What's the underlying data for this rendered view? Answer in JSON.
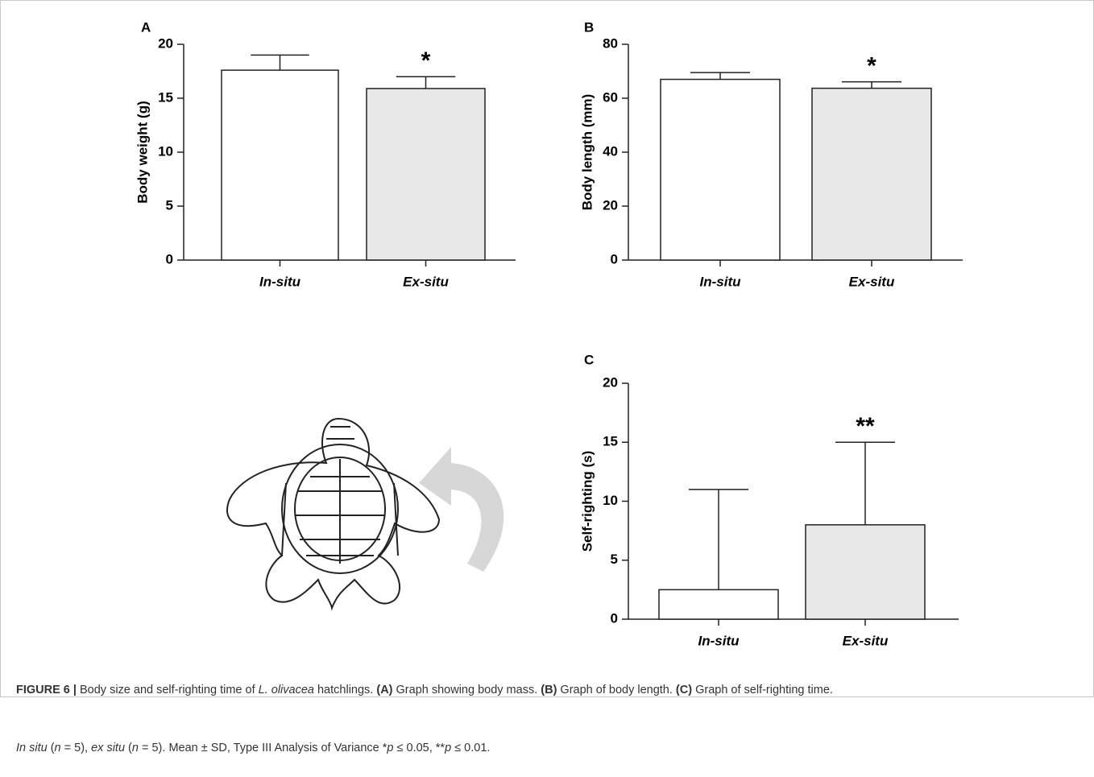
{
  "chart_data": [
    {
      "type": "bar",
      "panel": "A",
      "y_label": "Body weight (g)",
      "categories": [
        "In-situ",
        "Ex-situ"
      ],
      "values": [
        17.6,
        15.9
      ],
      "errors": [
        1.4,
        1.1
      ],
      "colors": [
        "#ffffff",
        "#e8e8e8"
      ],
      "annotations": [
        null,
        "*"
      ],
      "ylim": [
        0,
        20
      ],
      "yticks": [
        0,
        5,
        10,
        15,
        20
      ]
    },
    {
      "type": "bar",
      "panel": "B",
      "y_label": "Body length (mm)",
      "categories": [
        "In-situ",
        "Ex-situ"
      ],
      "values": [
        67,
        63.7
      ],
      "errors": [
        2.5,
        2.4
      ],
      "colors": [
        "#ffffff",
        "#e8e8e8"
      ],
      "annotations": [
        null,
        "*"
      ],
      "ylim": [
        0,
        80
      ],
      "yticks": [
        0,
        20,
        40,
        60,
        80
      ]
    },
    {
      "type": "bar",
      "panel": "C",
      "y_label": "Self-righting (s)",
      "categories": [
        "In-situ",
        "Ex-situ"
      ],
      "values": [
        2.5,
        8.0
      ],
      "errors": [
        8.5,
        7.0
      ],
      "colors": [
        "#ffffff",
        "#e8e8e8"
      ],
      "annotations": [
        null,
        "**"
      ],
      "ylim": [
        0,
        20
      ],
      "yticks": [
        0,
        5,
        10,
        15,
        20
      ]
    }
  ],
  "caption": {
    "lines": [
      [
        "FIGURE 6 |",
        " Body size and self-righting time of ",
        "L. olivacea",
        " hatchlings. ",
        "(A)",
        " Graph showing body mass. ",
        "(B)",
        " Graph of body length. ",
        "(C)",
        " Graph of self-righting time."
      ],
      [
        "In situ",
        " (",
        "n",
        " = 5), ",
        "ex situ",
        " (",
        "n",
        " = 5). Mean ± SD, Type III Analysis of Variance *",
        "p",
        " ≤ 0.05, **",
        "p",
        " ≤ 0.01."
      ]
    ]
  }
}
